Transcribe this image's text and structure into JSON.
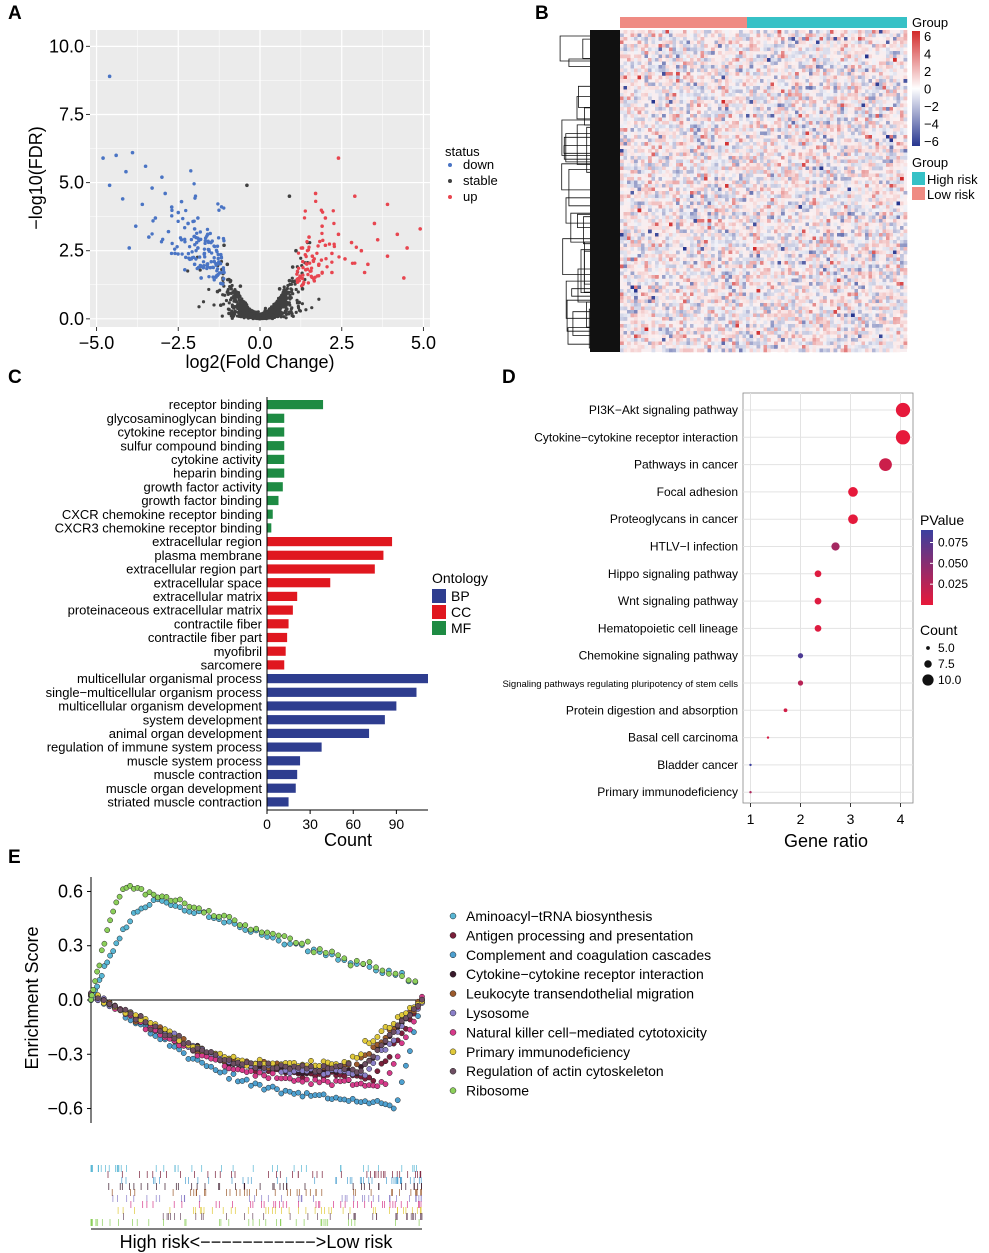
{
  "colors": {
    "down": "#4a74c4",
    "stable": "#404040",
    "up": "#e8454f",
    "bp": "#2e3d8f",
    "cc": "#e0171f",
    "mf": "#1e8b43",
    "high_risk": "#36c1c6",
    "low_risk": "#ef8b83",
    "panel_bg": "#ebebeb",
    "heat_high": "#d22b2b",
    "heat_low": "#27368f",
    "p_low": "#e8193a",
    "p_high": "#3a3f9f"
  },
  "panels": {
    "a": {
      "letter": "A"
    },
    "b": {
      "letter": "B"
    },
    "c": {
      "letter": "C"
    },
    "d": {
      "letter": "D"
    },
    "e": {
      "letter": "E"
    }
  },
  "chart_data": [
    {
      "id": "A",
      "type": "scatter",
      "title": "",
      "xlabel": "log2(Fold Change)",
      "ylabel": "−log10(FDR)",
      "xlim": [
        -5.2,
        5.2
      ],
      "ylim": [
        -0.3,
        10.6
      ],
      "xticks": [
        "−5.0",
        "−2.5",
        "0.0",
        "2.5",
        "5.0"
      ],
      "xtick_values": [
        -5.0,
        -2.5,
        0.0,
        2.5,
        5.0
      ],
      "yticks": [
        "0.0",
        "2.5",
        "5.0",
        "7.5",
        "10.0"
      ],
      "ytick_values": [
        0.0,
        2.5,
        5.0,
        7.5,
        10.0
      ],
      "legend_title": "status",
      "series": [
        {
          "name": "down",
          "color_key": "down",
          "points": [
            [
              -4.6,
              8.9
            ],
            [
              -4.8,
              5.9
            ],
            [
              -4.4,
              6.0
            ],
            [
              -3.9,
              6.1
            ],
            [
              -4.1,
              5.4
            ],
            [
              -3.5,
              5.6
            ],
            [
              -4.6,
              4.9
            ],
            [
              -4.2,
              4.4
            ],
            [
              -3.0,
              5.2
            ],
            [
              -3.3,
              4.8
            ],
            [
              -3.6,
              4.2
            ],
            [
              -2.9,
              4.6
            ],
            [
              -2.7,
              4.1
            ],
            [
              -3.2,
              3.7
            ],
            [
              -2.5,
              3.9
            ],
            [
              -2.2,
              3.5
            ],
            [
              -2.8,
              3.2
            ],
            [
              -2.4,
              2.9
            ],
            [
              -2.0,
              3.3
            ],
            [
              -1.9,
              2.6
            ],
            [
              -2.1,
              2.2
            ],
            [
              -1.7,
              2.4
            ],
            [
              -1.6,
              1.9
            ],
            [
              -1.4,
              2.1
            ],
            [
              -1.3,
              1.6
            ],
            [
              -1.8,
              1.5
            ],
            [
              -2.3,
              1.8
            ],
            [
              -1.5,
              2.8
            ],
            [
              -2.6,
              2.4
            ],
            [
              -3.8,
              3.4
            ],
            [
              -4.0,
              2.6
            ],
            [
              -1.2,
              1.3
            ],
            [
              -1.1,
              1.7
            ],
            [
              -1.9,
              3.7
            ],
            [
              -2.4,
              4.3
            ],
            [
              -3.4,
              3.0
            ],
            [
              -1.6,
              3.1
            ],
            [
              -2.0,
              2.0
            ]
          ]
        },
        {
          "name": "stable",
          "color_key": "stable",
          "points": [
            [
              -0.2,
              0.05
            ],
            [
              0.2,
              0.1
            ],
            [
              -0.4,
              0.3
            ],
            [
              0.4,
              0.3
            ],
            [
              -0.6,
              0.6
            ],
            [
              0.6,
              0.6
            ],
            [
              -0.8,
              1.0
            ],
            [
              0.8,
              1.0
            ],
            [
              -0.9,
              1.4
            ],
            [
              0.9,
              1.4
            ],
            [
              -0.5,
              0.2
            ],
            [
              0.5,
              0.2
            ],
            [
              -0.7,
              0.9
            ],
            [
              0.7,
              0.8
            ],
            [
              -1.0,
              2.0
            ],
            [
              1.0,
              1.9
            ],
            [
              -0.3,
              0.12
            ],
            [
              0.3,
              0.15
            ],
            [
              -1.1,
              2.7
            ],
            [
              1.1,
              2.5
            ],
            [
              -0.4,
              4.9
            ],
            [
              0.9,
              4.5
            ],
            [
              -0.1,
              0.02
            ],
            [
              0.1,
              0.03
            ],
            [
              -0.8,
              0.4
            ],
            [
              0.8,
              0.5
            ],
            [
              -0.6,
              1.2
            ],
            [
              0.6,
              1.1
            ],
            [
              -1.3,
              1.0
            ],
            [
              1.3,
              1.1
            ],
            [
              -0.95,
              0.2
            ],
            [
              0.95,
              0.25
            ],
            [
              -1.2,
              0.5
            ],
            [
              1.2,
              0.6
            ]
          ]
        },
        {
          "name": "up",
          "color_key": "up",
          "points": [
            [
              1.2,
              1.4
            ],
            [
              1.4,
              1.8
            ],
            [
              1.6,
              2.3
            ],
            [
              1.8,
              2.0
            ],
            [
              2.0,
              2.7
            ],
            [
              2.2,
              2.4
            ],
            [
              1.5,
              3.0
            ],
            [
              1.9,
              3.4
            ],
            [
              2.4,
              3.1
            ],
            [
              2.6,
              2.2
            ],
            [
              2.8,
              2.8
            ],
            [
              3.1,
              2.5
            ],
            [
              3.3,
              2.0
            ],
            [
              3.6,
              2.9
            ],
            [
              3.9,
              2.3
            ],
            [
              4.2,
              3.1
            ],
            [
              4.5,
              2.6
            ],
            [
              4.9,
              3.3
            ],
            [
              3.9,
              4.2
            ],
            [
              2.4,
              5.9
            ],
            [
              1.7,
              4.6
            ],
            [
              2.0,
              3.7
            ],
            [
              3.2,
              1.7
            ],
            [
              4.4,
              1.5
            ],
            [
              2.9,
              4.5
            ],
            [
              1.3,
              2.6
            ],
            [
              2.2,
              1.7
            ],
            [
              3.5,
              3.5
            ]
          ]
        }
      ]
    },
    {
      "id": "B",
      "type": "heatmap",
      "title": "",
      "scale_title": "Group",
      "scale_ticks": [
        "6",
        "4",
        "2",
        "0",
        "−2",
        "−4",
        "−6"
      ],
      "scale_tick_values": [
        6,
        4,
        2,
        0,
        -2,
        -4,
        -6
      ],
      "group_legend_title": "Group",
      "groups": [
        {
          "name": "High risk",
          "color_key": "high_risk"
        },
        {
          "name": "Low risk",
          "color_key": "low_risk"
        }
      ],
      "annotation": [
        {
          "group": "Low risk",
          "fraction": 0.44
        },
        {
          "group": "High risk",
          "fraction": 0.56
        }
      ]
    },
    {
      "id": "C",
      "type": "bar",
      "orientation": "horizontal",
      "xlabel": "Count",
      "xlim": [
        0,
        112
      ],
      "xticks": [
        "0",
        "30",
        "60",
        "90"
      ],
      "xtick_values": [
        0,
        30,
        60,
        90
      ],
      "legend_title": "Ontology",
      "legend": [
        {
          "name": "BP",
          "color_key": "bp"
        },
        {
          "name": "CC",
          "color_key": "cc"
        },
        {
          "name": "MF",
          "color_key": "mf"
        }
      ],
      "categories": [
        "receptor binding",
        "glycosaminoglycan binding",
        "cytokine receptor binding",
        "sulfur compound binding",
        "cytokine activity",
        "heparin binding",
        "growth factor activity",
        "growth factor binding",
        "CXCR chemokine receptor binding",
        "CXCR3 chemokine receptor binding",
        "extracellular region",
        "plasma membrane",
        "extracellular region part",
        "extracellular space",
        "extracellular matrix",
        "proteinaceous extracellular matrix",
        "contractile fiber",
        "contractile fiber part",
        "myofibril",
        "sarcomere",
        "multicellular organismal process",
        "single−multicellular organism process",
        "multicellular organism development",
        "system development",
        "animal organ development",
        "regulation of immune system process",
        "muscle system process",
        "muscle contraction",
        "muscle organ development",
        "striated muscle contraction"
      ],
      "values": [
        39,
        12,
        12,
        12,
        12,
        12,
        11,
        8,
        4,
        3,
        87,
        81,
        75,
        44,
        21,
        18,
        15,
        14,
        13,
        12,
        112,
        104,
        90,
        82,
        71,
        38,
        23,
        21,
        20,
        15
      ],
      "ontology": [
        "MF",
        "MF",
        "MF",
        "MF",
        "MF",
        "MF",
        "MF",
        "MF",
        "MF",
        "MF",
        "CC",
        "CC",
        "CC",
        "CC",
        "CC",
        "CC",
        "CC",
        "CC",
        "CC",
        "CC",
        "BP",
        "BP",
        "BP",
        "BP",
        "BP",
        "BP",
        "BP",
        "BP",
        "BP",
        "BP"
      ]
    },
    {
      "id": "D",
      "type": "scatter",
      "subtype": "dotplot",
      "xlabel": "Gene ratio",
      "xlim": [
        0.85,
        4.25
      ],
      "xticks": [
        "1",
        "2",
        "3",
        "4"
      ],
      "xtick_values": [
        1,
        2,
        3,
        4
      ],
      "color_legend_title": "PValue",
      "color_ticks": [
        "0.075",
        "0.050",
        "0.025"
      ],
      "color_tick_values": [
        0.075,
        0.05,
        0.025
      ],
      "color_range": [
        0.0,
        0.09
      ],
      "size_legend_title": "Count",
      "size_ticks": [
        "5.0",
        "7.5",
        "10.0"
      ],
      "size_tick_values": [
        5.0,
        7.5,
        10.0
      ],
      "categories": [
        "PI3K−Akt signaling pathway",
        "Cytokine−cytokine receptor interaction",
        "Pathways in cancer",
        "Focal adhesion",
        "Proteoglycans in cancer",
        "HTLV−I infection",
        "Hippo signaling pathway",
        "Wnt signaling pathway",
        "Hematopoietic cell lineage",
        "Chemokine signaling pathway",
        "Signaling pathways regulating pluripotency of stem cells",
        "Protein digestion and absorption",
        "Basal cell carcinoma",
        "Bladder cancer",
        "Primary immunodeficiency"
      ],
      "x": [
        4.05,
        4.05,
        3.7,
        3.05,
        3.05,
        2.7,
        2.35,
        2.35,
        2.35,
        2.0,
        2.0,
        1.7,
        1.35,
        1.0,
        1.0
      ],
      "count": [
        12,
        12,
        11,
        9,
        9,
        8,
        7,
        7,
        7,
        6,
        6,
        5,
        4,
        3,
        3
      ],
      "pvalue": [
        0.001,
        0.001,
        0.015,
        0.001,
        0.002,
        0.035,
        0.005,
        0.005,
        0.005,
        0.08,
        0.025,
        0.012,
        0.01,
        0.09,
        0.03
      ]
    },
    {
      "id": "E",
      "type": "line",
      "subtype": "gsea",
      "ylabel": "Enrichment Score",
      "xlabel": "High risk<−−−−−−−−−−−>Low risk",
      "ylim": [
        -0.68,
        0.68
      ],
      "yticks": [
        "0.6",
        "0.3",
        "0.0",
        "−0.3",
        "−0.6"
      ],
      "ytick_values": [
        0.6,
        0.3,
        0.0,
        -0.3,
        -0.6
      ],
      "series": [
        {
          "name": "Aminoacyl−tRNA biosynthesis",
          "color": "#58b6d4",
          "peak": 0.55,
          "peak_pos": 0.2,
          "end": 0.1,
          "direction": "up"
        },
        {
          "name": "Antigen processing and presentation",
          "color": "#7a1f3a",
          "trough": -0.45,
          "trough_pos": 0.85,
          "direction": "down"
        },
        {
          "name": "Complement and coagulation cascades",
          "color": "#4da0d0",
          "trough": -0.6,
          "trough_pos": 0.92,
          "direction": "down"
        },
        {
          "name": "Cytokine−cytokine receptor interaction",
          "color": "#3a1a2c",
          "trough": -0.42,
          "trough_pos": 0.8,
          "direction": "down"
        },
        {
          "name": "Leukocyte transendothelial migration",
          "color": "#9b5a2c",
          "trough": -0.4,
          "trough_pos": 0.78,
          "direction": "down"
        },
        {
          "name": "Lysosome",
          "color": "#8a7fc8",
          "trough": -0.43,
          "trough_pos": 0.82,
          "direction": "down"
        },
        {
          "name": "Natural killer cell−mediated cytotoxicity",
          "color": "#d63a8a",
          "trough": -0.5,
          "trough_pos": 0.88,
          "direction": "down"
        },
        {
          "name": "Primary immunodeficiency",
          "color": "#e0c93a",
          "trough": -0.38,
          "trough_pos": 0.75,
          "direction": "down"
        },
        {
          "name": "Regulation of actin cytoskeleton",
          "color": "#6e4f63",
          "trough": -0.41,
          "trough_pos": 0.8,
          "direction": "down"
        },
        {
          "name": "Ribosome",
          "color": "#8ccf5a",
          "peak": 0.63,
          "peak_pos": 0.12,
          "end": 0.1,
          "direction": "up"
        }
      ]
    }
  ]
}
